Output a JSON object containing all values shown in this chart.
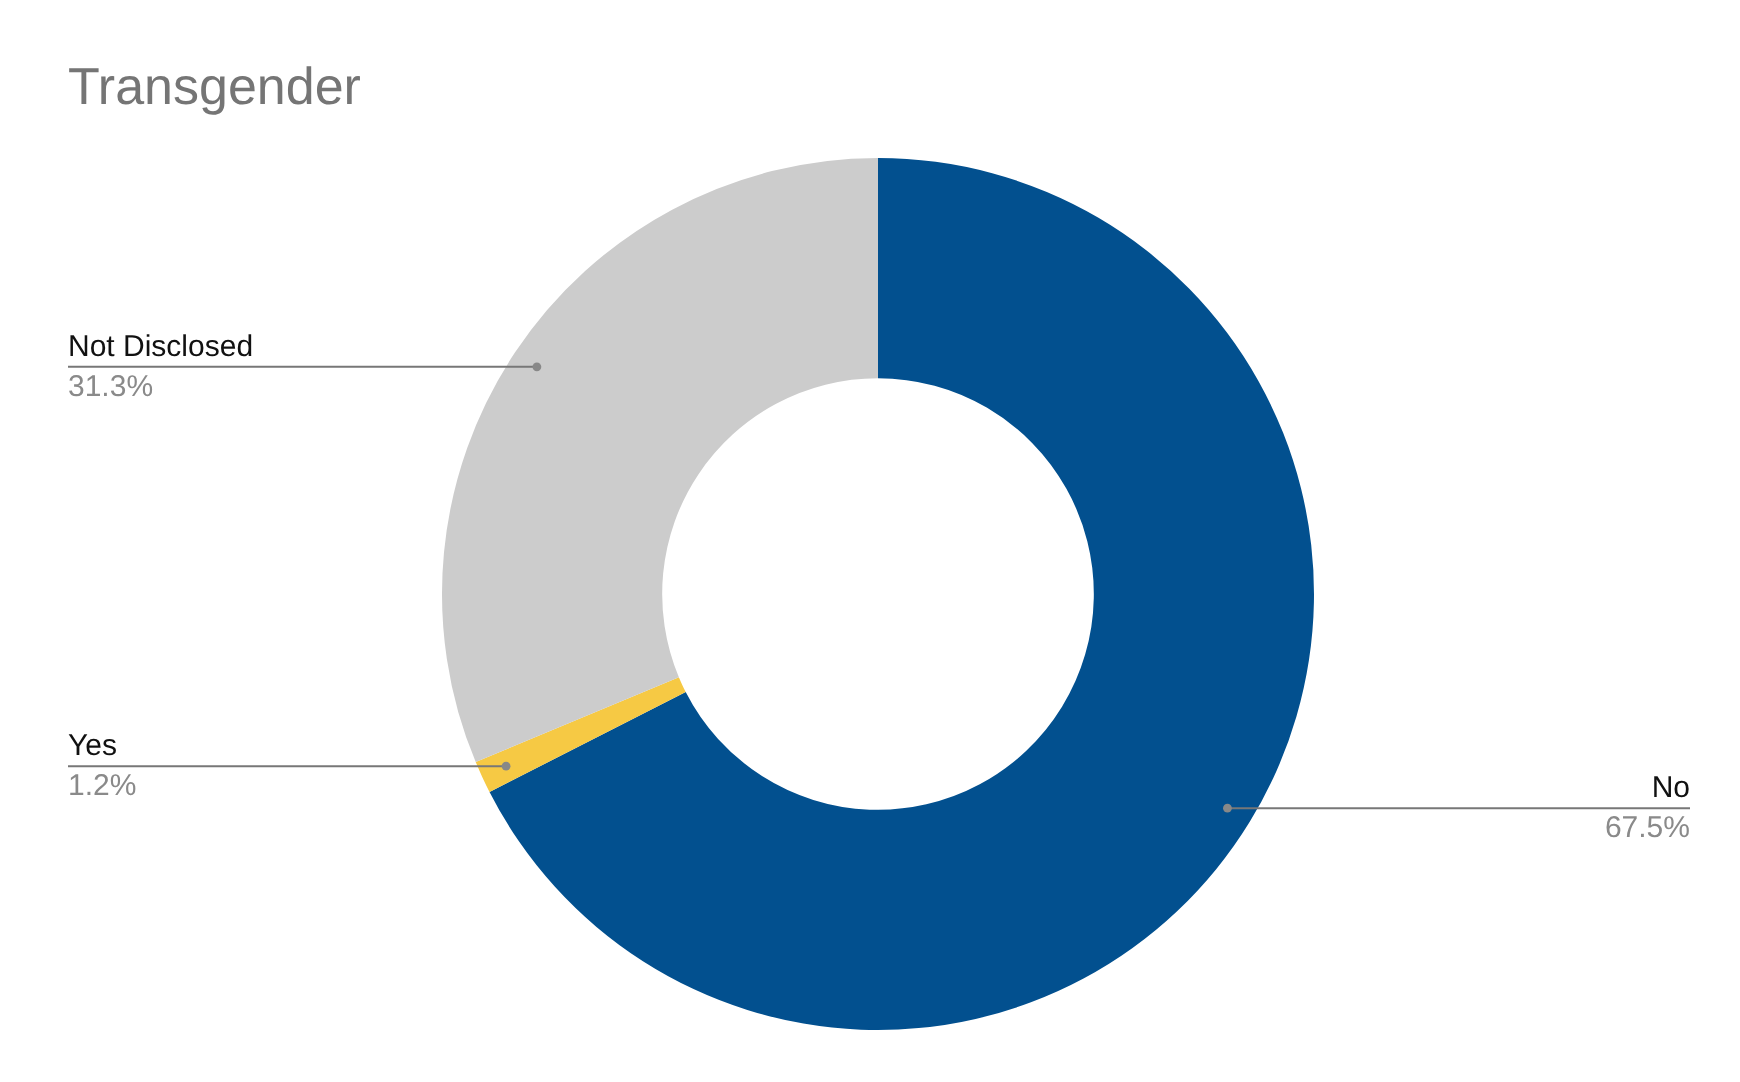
{
  "chart_data": {
    "type": "donut",
    "title": "Transgender",
    "categories": [
      "No",
      "Yes",
      "Not Disclosed"
    ],
    "values": [
      67.5,
      1.2,
      31.3
    ],
    "colors": [
      "#02508f",
      "#f6c944",
      "#cccccc"
    ],
    "value_labels": [
      "67.5%",
      "1.2%",
      "31.3%"
    ],
    "legend": false
  }
}
